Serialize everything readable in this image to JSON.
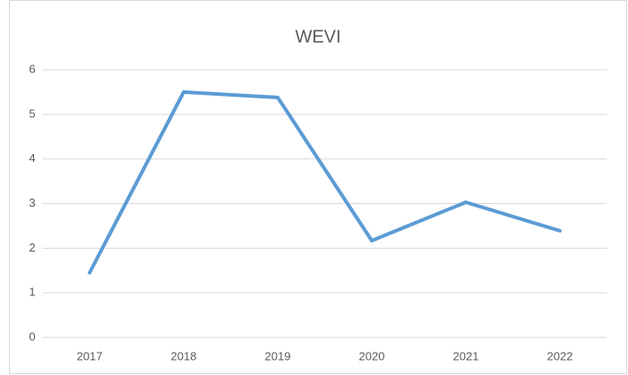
{
  "chart_data": {
    "type": "line",
    "title": "WEVI",
    "categories": [
      "2017",
      "2018",
      "2019",
      "2020",
      "2021",
      "2022"
    ],
    "values": [
      1.45,
      5.5,
      5.38,
      2.17,
      3.03,
      2.39
    ],
    "color": "#5b9bd5",
    "ylim": [
      0,
      6
    ],
    "yticks": [
      0,
      1,
      2,
      3,
      4,
      5,
      6
    ],
    "grid": true
  }
}
